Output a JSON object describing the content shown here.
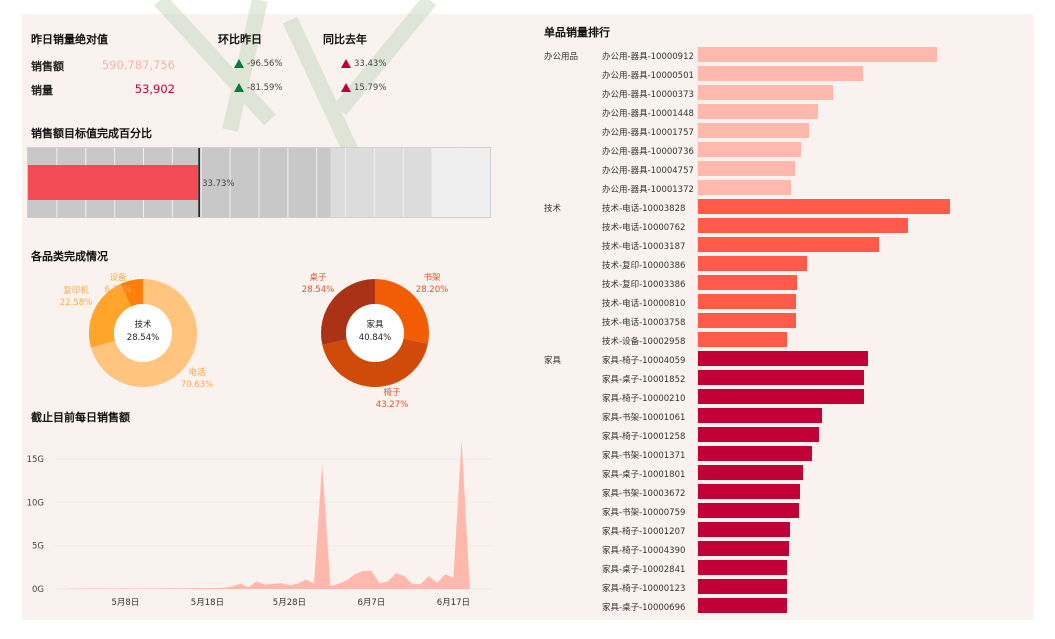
{
  "kpi": {
    "title": "昨日销量绝对值",
    "col_mom": "环比昨日",
    "col_yoy": "同比去年",
    "rows": [
      {
        "label": "销售额",
        "value": "590,787,756",
        "mom": "-96.56%",
        "yoy": "33.43%",
        "value_color": "#f7b3a8"
      },
      {
        "label": "销量",
        "value": "53,902",
        "mom": "-81.59%",
        "yoy": "15.79%",
        "value_color": "#c8003a"
      }
    ]
  },
  "bullet": {
    "title": "销售额目标值完成百分比",
    "value": 33.73,
    "value_label": "33.73%",
    "axis_max": 91.6,
    "bands": [
      60,
      80,
      91.6
    ],
    "bar_color": "#f24b55"
  },
  "donuts": {
    "title": "各品类完成情况",
    "charts": [
      {
        "center_label": "技术",
        "center_value": "28.54%",
        "slices": [
          {
            "name": "电话",
            "pct": "70.63%",
            "value": 70.63,
            "color": "#ffc47e"
          },
          {
            "name": "复印机",
            "pct": "22.58%",
            "value": 22.58,
            "color": "#ffa52a"
          },
          {
            "name": "设备",
            "pct": "6.79%",
            "value": 6.79,
            "color": "#ff7f0e"
          }
        ]
      },
      {
        "center_label": "家具",
        "center_value": "40.84%",
        "slices": [
          {
            "name": "书架",
            "pct": "28.20%",
            "value": 28.2,
            "color": "#f25c05"
          },
          {
            "name": "椅子",
            "pct": "43.27%",
            "value": 43.27,
            "color": "#d04a0a"
          },
          {
            "name": "桌子",
            "pct": "28.54%",
            "value": 28.54,
            "color": "#a93217"
          }
        ]
      }
    ]
  },
  "chart_data": {
    "type": "area",
    "title": "截止目前每日销售额",
    "x_start": "5月1日",
    "x_ticks": [
      {
        "day": 7,
        "label": "5月8日"
      },
      {
        "day": 17,
        "label": "5月18日"
      },
      {
        "day": 27,
        "label": "5月28日"
      },
      {
        "day": 37,
        "label": "6月7日"
      },
      {
        "day": 47,
        "label": "6月17日"
      }
    ],
    "y_ticks": [
      {
        "v": 0,
        "label": "0G"
      },
      {
        "v": 5,
        "label": "5G"
      },
      {
        "v": 10,
        "label": "10G"
      },
      {
        "v": 15,
        "label": "15G"
      }
    ],
    "ylim": [
      0,
      18
    ],
    "unit": "G",
    "color": "#ffb8ac",
    "values": [
      0.05,
      0.05,
      0.05,
      0.06,
      0.06,
      0.05,
      0.06,
      0.07,
      0.06,
      0.05,
      0.06,
      0.06,
      0.07,
      0.08,
      0.07,
      0.08,
      0.1,
      0.1,
      0.12,
      0.15,
      0.3,
      0.6,
      0.2,
      0.9,
      0.5,
      0.6,
      0.65,
      0.45,
      0.6,
      1.1,
      0.65,
      14.4,
      0.35,
      0.6,
      1.0,
      1.7,
      2.1,
      2.1,
      0.65,
      0.9,
      1.8,
      1.5,
      0.55,
      0.55,
      1.5,
      0.7,
      1.7,
      1.3,
      17.2,
      0
    ]
  },
  "ranking": {
    "title": "单品销量排行",
    "groups": [
      {
        "name": "办公用品",
        "color": "#ffb8ac",
        "items": [
          {
            "name": "办公用-器具-10000912",
            "value": 239
          },
          {
            "name": "办公用-器具-10000501",
            "value": 165
          },
          {
            "name": "办公用-器具-10000373",
            "value": 135
          },
          {
            "name": "办公用-器具-10001448",
            "value": 120
          },
          {
            "name": "办公用-器具-10001757",
            "value": 111
          },
          {
            "name": "办公用-器具-10000736",
            "value": 103
          },
          {
            "name": "办公用-器具-10004757",
            "value": 97
          },
          {
            "name": "办公用-器具-10001372",
            "value": 93
          }
        ]
      },
      {
        "name": "技术",
        "color": "#ff5a4a",
        "items": [
          {
            "name": "技术-电话-10003828",
            "value": 252
          },
          {
            "name": "技术-电话-10000762",
            "value": 210
          },
          {
            "name": "技术-电话-10003187",
            "value": 181
          },
          {
            "name": "技术-复印-10000386",
            "value": 109
          },
          {
            "name": "技术-复印-10003386",
            "value": 99
          },
          {
            "name": "技术-电话-10000810",
            "value": 98
          },
          {
            "name": "技术-电话-10003758",
            "value": 98
          },
          {
            "name": "技术-设备-10002958",
            "value": 89
          }
        ]
      },
      {
        "name": "家具",
        "color": "#c10038",
        "items": [
          {
            "name": "家具-椅子-10004059",
            "value": 170
          },
          {
            "name": "家具-桌子-10001852",
            "value": 166
          },
          {
            "name": "家具-椅子-10000210",
            "value": 166
          },
          {
            "name": "家具-书架-10001061",
            "value": 124
          },
          {
            "name": "家具-椅子-10001258",
            "value": 121
          },
          {
            "name": "家具-书架-10001371",
            "value": 114
          },
          {
            "name": "家具-桌子-10001801",
            "value": 105
          },
          {
            "name": "家具-书架-10003672",
            "value": 102
          },
          {
            "name": "家具-书架-10000759",
            "value": 101
          },
          {
            "name": "家具-椅子-10001207",
            "value": 92
          },
          {
            "name": "家具-椅子-10004390",
            "value": 91
          },
          {
            "name": "家具-桌子-10002841",
            "value": 89
          },
          {
            "name": "家具-椅子-10000123",
            "value": 89
          },
          {
            "name": "家具-桌子-10000696",
            "value": 89
          }
        ]
      }
    ]
  }
}
